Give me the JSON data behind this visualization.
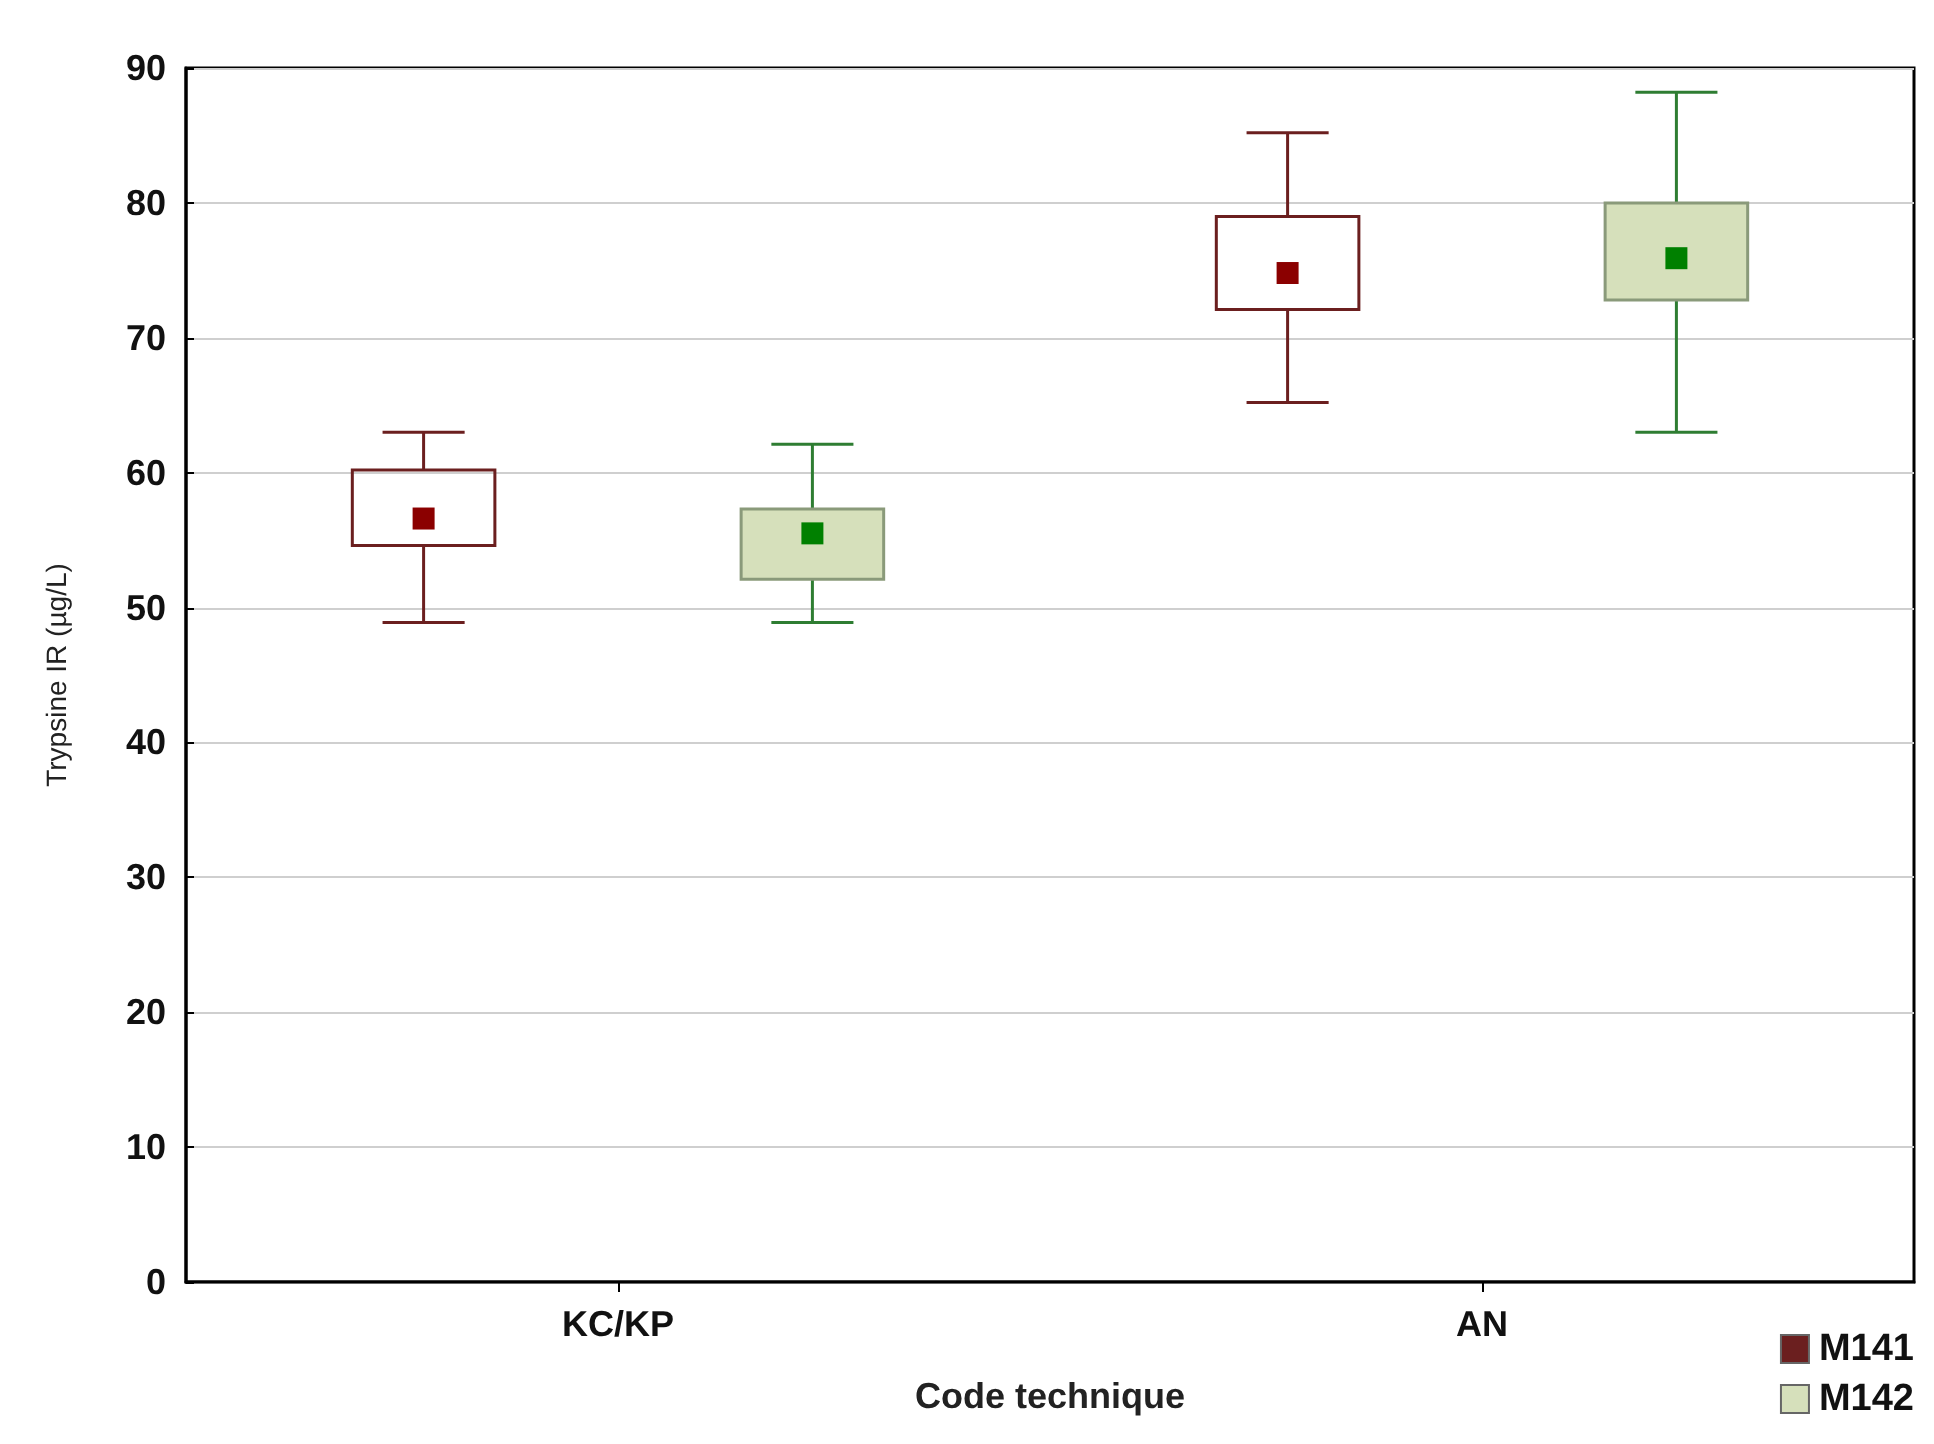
{
  "chart_data": {
    "type": "box",
    "xlabel": "Code technique",
    "ylabel": "Trypsine IR (µg/L)",
    "categories": [
      "KC/KP",
      "AN"
    ],
    "ylim": [
      0,
      90
    ],
    "yticks": [
      0,
      10,
      20,
      30,
      40,
      50,
      60,
      70,
      80,
      90
    ],
    "grid": "y",
    "legend": "bottom right",
    "marker": "square",
    "series": [
      {
        "name": "M141",
        "color": "#6b1f1f",
        "boxes": [
          {
            "low": 48.9,
            "q1": 54.6,
            "median": 56.6,
            "q3": 60.2,
            "high": 63.0
          },
          {
            "low": 65.2,
            "q1": 72.1,
            "median": 74.8,
            "q3": 79.0,
            "high": 85.2
          }
        ]
      },
      {
        "name": "M142",
        "color": "#d6e0bb",
        "boxes": [
          {
            "low": 48.9,
            "q1": 52.1,
            "median": 55.5,
            "q3": 57.3,
            "high": 62.1
          },
          {
            "low": 63.0,
            "q1": 72.8,
            "median": 75.9,
            "q3": 80.0,
            "high": 88.2
          }
        ]
      }
    ]
  }
}
